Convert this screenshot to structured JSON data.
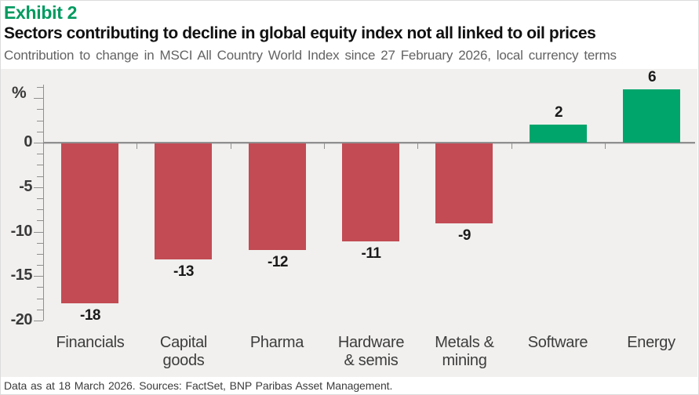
{
  "header": {
    "exhibit_label": "Exhibit 2",
    "title": "Sectors contributing to decline in global equity index not all linked to oil prices",
    "subtitle": "Contribution to change in MSCI All Country World Index since 27 February 2026, local currency terms"
  },
  "chart_data": {
    "type": "bar",
    "title": "Sectors contributing to decline in global equity index not all linked to oil prices",
    "subtitle": "Contribution to change in MSCI All Country World Index since 27 February 2026, local currency terms",
    "unit_label": "%",
    "categories": [
      "Financials",
      "Capital goods",
      "Pharma",
      "Hardware & semis",
      "Metals & mining",
      "Software",
      "Energy"
    ],
    "category_label_lines": [
      [
        "Financials"
      ],
      [
        "Capital",
        "goods"
      ],
      [
        "Pharma"
      ],
      [
        "Hardware",
        "& semis"
      ],
      [
        "Metals &",
        "mining"
      ],
      [
        "Software"
      ],
      [
        "Energy"
      ]
    ],
    "values": [
      -18,
      -13,
      -12,
      -11,
      -9,
      2,
      6
    ],
    "value_labels": [
      "-18",
      "-13",
      "-12",
      "-11",
      "-9",
      "2",
      "6"
    ],
    "xlabel": "",
    "ylabel": "%",
    "ylim": [
      -20,
      6.25
    ],
    "y_major_ticks": [
      0,
      -5,
      -10,
      -15,
      -20
    ],
    "y_major_tick_labels": [
      "0",
      "-5",
      "-10",
      "-15",
      "-20"
    ],
    "y_minor_tick_step": 1.25,
    "grid": "off",
    "legend": "none",
    "colors": {
      "negative_bar": "#c24b54",
      "positive_bar": "#00a56b",
      "axis": "#8f8f8f",
      "panel_background": "#f1f0ee",
      "accent_green_text": "#009a5f"
    }
  },
  "footer": {
    "text": "Data as at 18 March 2026.  Sources: FactSet, BNP Paribas Asset Management."
  }
}
